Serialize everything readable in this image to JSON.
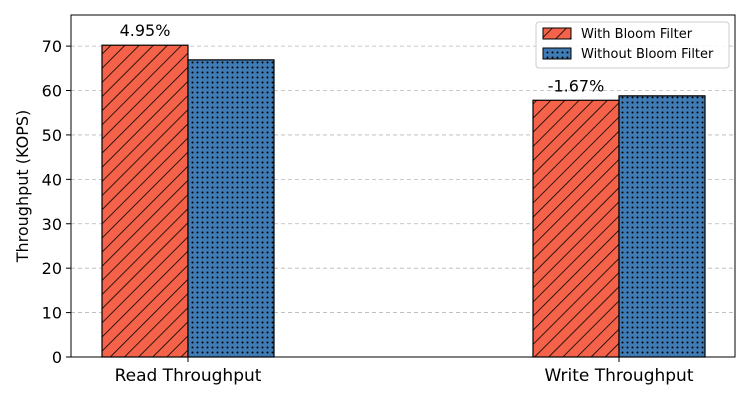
{
  "chart_data": {
    "type": "bar",
    "categories": [
      "Read Throughput",
      "Write Throughput"
    ],
    "series": [
      {
        "name": "With Bloom Filter",
        "values": [
          70.2,
          57.8
        ],
        "color": "#f4624a",
        "pattern": "diagonal-hatch"
      },
      {
        "name": "Without Bloom Filter",
        "values": [
          66.9,
          58.8
        ],
        "color": "#3f7bb5",
        "pattern": "dots"
      }
    ],
    "annotations": [
      "4.95%",
      "-1.67%"
    ],
    "ylabel": "Throughput (KOPS)",
    "xlabel": "",
    "ylim": [
      0,
      77
    ],
    "yticks": [
      "0",
      "10",
      "20",
      "30",
      "40",
      "50",
      "60",
      "70"
    ],
    "grid": "horizontal dashed",
    "legend_position": "top-right"
  }
}
